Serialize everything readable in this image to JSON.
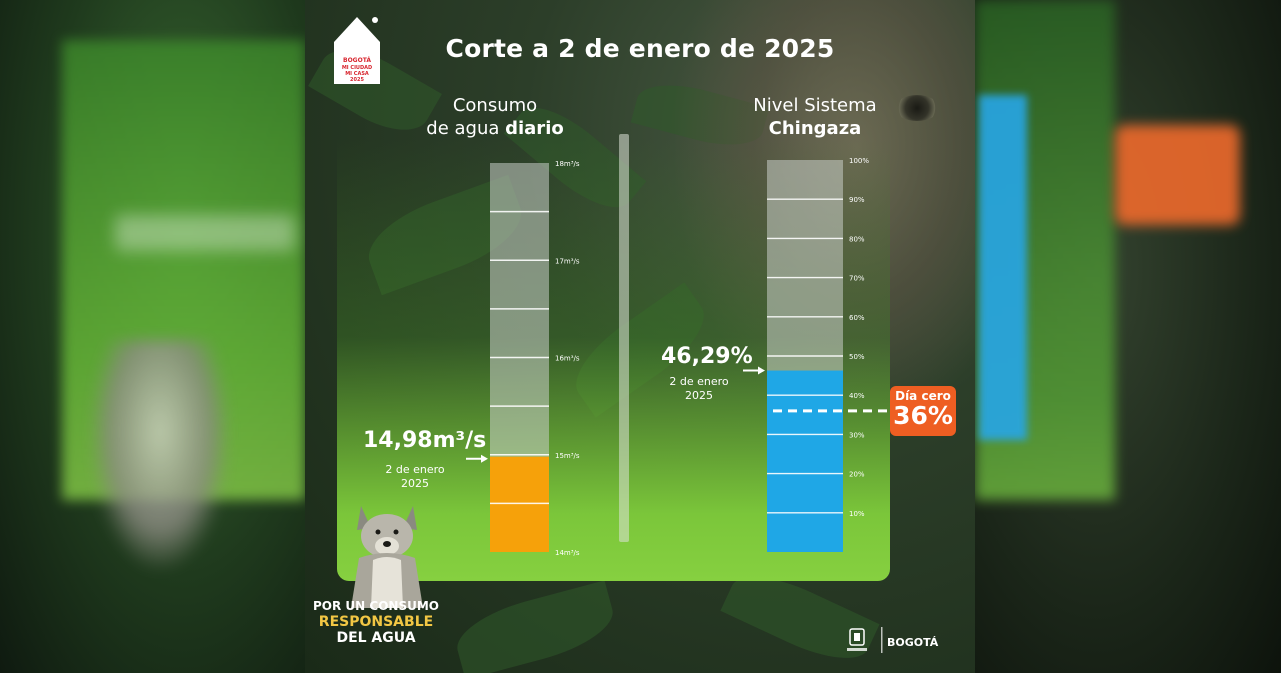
{
  "title": "Corte a 2 de enero de 2025",
  "logo": {
    "line1": "BOGOTÁ",
    "line2": "MI CIUDAD",
    "line3": "MI CASA",
    "year": "2025"
  },
  "left_chart": {
    "label_line1": "Consumo",
    "label_line2_normal": "de agua ",
    "label_line2_bold": "diario",
    "value_label": "14,98m³/s",
    "date_label_line1": "2 de enero",
    "date_label_line2": "2025",
    "fill_color": "#f6a10a"
  },
  "right_chart": {
    "label_line1": "Nivel Sistema",
    "label_line2_bold": "Chingaza",
    "value_label": "46,29%",
    "date_label_line1": "2 de enero",
    "date_label_line2": "2025",
    "fill_color": "#1fa7e6"
  },
  "dia_cero": {
    "label": "Día cero",
    "value": "36%",
    "color": "#ee5e22"
  },
  "slogan": {
    "line1": "POR UN CONSUMO",
    "line2": "RESPONSABLE",
    "line3": "DEL AGUA"
  },
  "footer": {
    "brand": "BOGOTÁ"
  },
  "chart_data": [
    {
      "type": "bar",
      "categories": [
        "2 de enero 2025"
      ],
      "values": [
        14.98
      ],
      "title": "Consumo de agua diario",
      "ylabel": "",
      "ylim": [
        14,
        18
      ],
      "y_ticks": [
        14,
        15,
        16,
        17,
        18
      ],
      "y_tick_labels": [
        "14m³/s",
        "15m³/s",
        "16m³/s",
        "17m³/s",
        "18m³/s"
      ],
      "grid_step": 0.5
    },
    {
      "type": "bar",
      "categories": [
        "2 de enero 2025"
      ],
      "values": [
        46.29
      ],
      "title": "Nivel Sistema Chingaza",
      "ylabel": "",
      "ylim": [
        0,
        100
      ],
      "y_ticks": [
        10,
        20,
        30,
        40,
        50,
        60,
        70,
        80,
        90,
        100
      ],
      "y_tick_labels": [
        "10%",
        "20%",
        "30%",
        "40%",
        "50%",
        "60%",
        "70%",
        "80%",
        "90%",
        "100%"
      ],
      "grid_step": 10,
      "threshold": {
        "value": 36,
        "label": "Día cero"
      }
    }
  ]
}
